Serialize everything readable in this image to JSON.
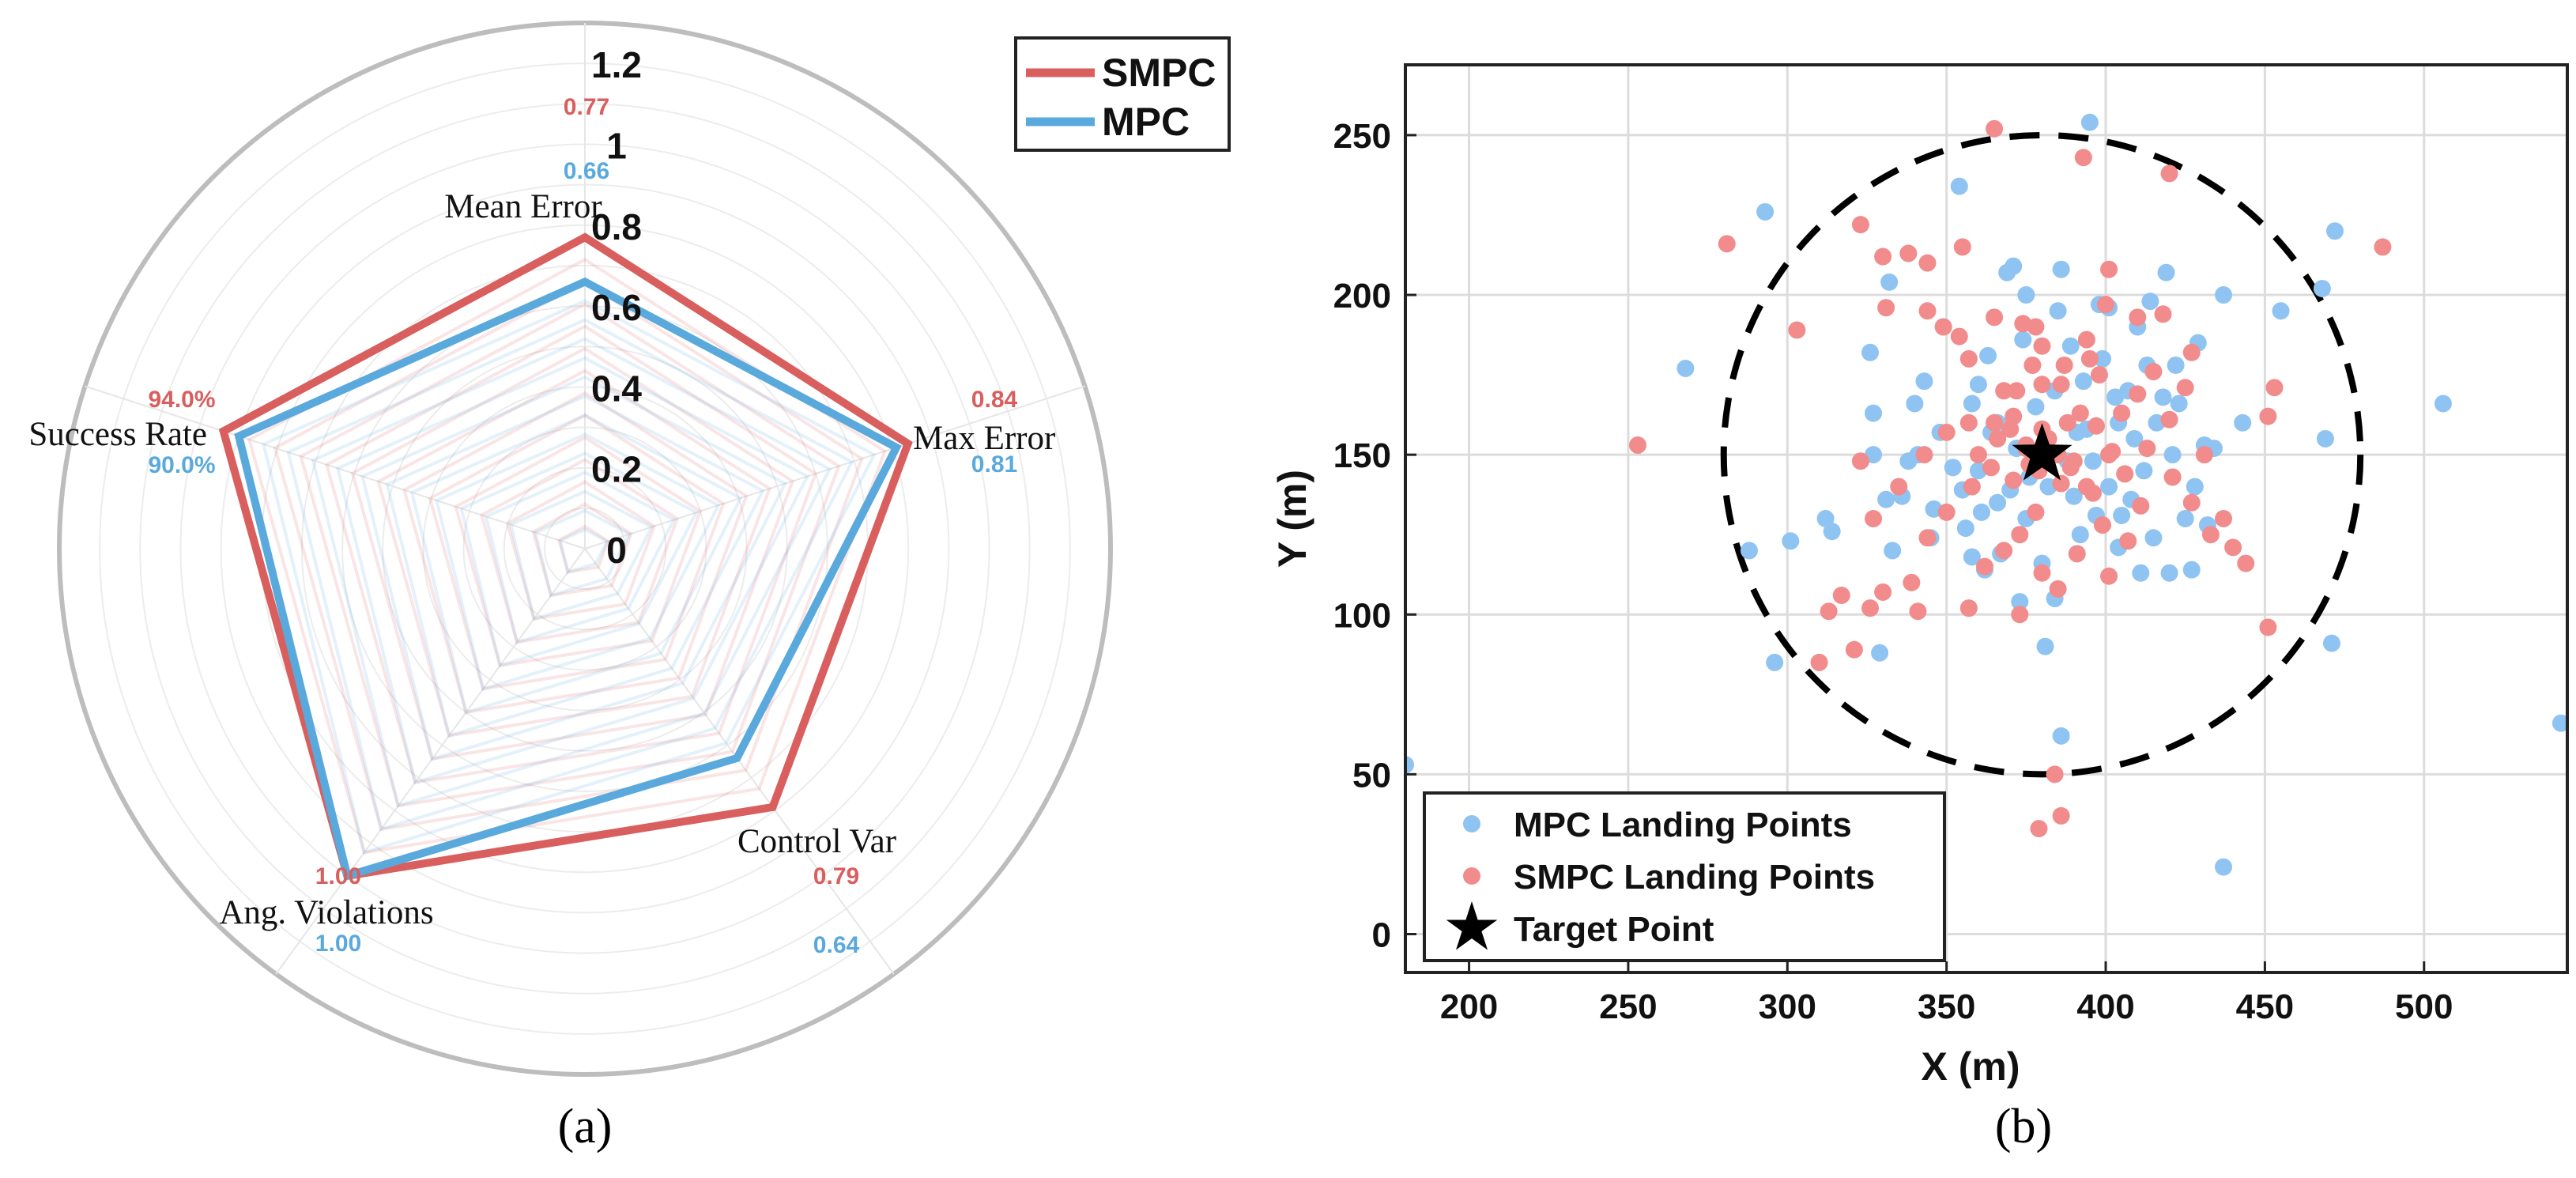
{
  "chart_data": [
    {
      "panel": "(a)",
      "type": "radar",
      "axes": [
        "Mean Error",
        "Max Error",
        "Control Var",
        "Ang. Violations",
        "Success Rate"
      ],
      "r_ticks": [
        "0",
        "0.2",
        "0.4",
        "0.6",
        "0.8",
        "1",
        "1.2"
      ],
      "rlim": [
        0,
        1.3
      ],
      "series": [
        {
          "name": "SMPC",
          "color": "#d95f5f",
          "values": [
            0.77,
            0.84,
            0.79,
            1.0,
            0.94
          ],
          "labels": [
            "0.77",
            "0.84",
            "0.79",
            "1.00",
            "94.0%"
          ]
        },
        {
          "name": "MPC",
          "color": "#5aa9dd",
          "values": [
            0.66,
            0.81,
            0.64,
            1.0,
            0.9
          ],
          "labels": [
            "0.66",
            "0.81",
            "0.64",
            "1.00",
            "90.0%"
          ]
        }
      ],
      "legend": [
        "SMPC",
        "MPC"
      ],
      "legend_position": "top-right"
    },
    {
      "panel": "(b)",
      "type": "scatter",
      "xlabel": "X (m)",
      "ylabel": "Y (m)",
      "xlim": [
        180,
        545
      ],
      "ylim": [
        -12,
        272
      ],
      "x_ticks": [
        "200",
        "250",
        "300",
        "350",
        "400",
        "450",
        "500"
      ],
      "y_ticks": [
        "0",
        "50",
        "100",
        "150",
        "200",
        "250"
      ],
      "grid": true,
      "circle": {
        "center": [
          380,
          150
        ],
        "radius": 100,
        "style": "dashed"
      },
      "target": {
        "name": "Target Point",
        "x": 380,
        "y": 150
      },
      "legend_position": "bottom-left",
      "series": [
        {
          "name": "MPC Landing Points",
          "color": "#8fc3f2",
          "points": [
            [
              395,
              254
            ],
            [
              293,
              226
            ],
            [
              354,
              234
            ],
            [
              369,
              207
            ],
            [
              371,
              209
            ],
            [
              332,
              204
            ],
            [
              296,
              85
            ],
            [
              288,
              120
            ],
            [
              301,
              123
            ],
            [
              312,
              130
            ],
            [
              314,
              126
            ],
            [
              326,
              182
            ],
            [
              327,
              163
            ],
            [
              340,
              166
            ],
            [
              341,
              150
            ],
            [
              348,
              157
            ],
            [
              358,
              166
            ],
            [
              360,
              172
            ],
            [
              366,
              160
            ],
            [
              370,
              139
            ],
            [
              375,
              130
            ],
            [
              380,
              116
            ],
            [
              384,
              105
            ],
            [
              386,
              62
            ],
            [
              381,
              90
            ],
            [
              392,
              125
            ],
            [
              397,
              131
            ],
            [
              401,
              140
            ],
            [
              404,
              160
            ],
            [
              407,
              170
            ],
            [
              410,
              190
            ],
            [
              414,
              198
            ],
            [
              419,
              207
            ],
            [
              422,
              178
            ],
            [
              429,
              185
            ],
            [
              434,
              152
            ],
            [
              437,
              200
            ],
            [
              443,
              160
            ],
            [
              455,
              195
            ],
            [
              468,
              202
            ],
            [
              472,
              220
            ],
            [
              469,
              155
            ],
            [
              471,
              91
            ],
            [
              506,
              166
            ],
            [
              543,
              66
            ],
            [
              180,
              53
            ],
            [
              437,
              21
            ],
            [
              268,
              177
            ],
            [
              329,
              88
            ],
            [
              333,
              120
            ],
            [
              336,
              137
            ],
            [
              345,
              124
            ],
            [
              352,
              146
            ],
            [
              355,
              139
            ],
            [
              361,
              132
            ],
            [
              364,
              157
            ],
            [
              372,
              152
            ],
            [
              376,
              143
            ],
            [
              378,
              165
            ],
            [
              384,
              170
            ],
            [
              388,
              148
            ],
            [
              390,
              137
            ],
            [
              394,
              158
            ],
            [
              398,
              197
            ],
            [
              401,
              196
            ],
            [
              404,
              121
            ],
            [
              408,
              136
            ],
            [
              412,
              145
            ],
            [
              416,
              160
            ],
            [
              418,
              168
            ],
            [
              420,
              113
            ],
            [
              425,
              130
            ],
            [
              428,
              140
            ],
            [
              431,
              153
            ],
            [
              349,
              190
            ],
            [
              356,
              127
            ],
            [
              362,
              114
            ],
            [
              367,
              119
            ],
            [
              373,
              104
            ],
            [
              386,
              208
            ],
            [
              393,
              173
            ],
            [
              399,
              180
            ],
            [
              403,
              168
            ],
            [
              411,
              113
            ],
            [
              415,
              124
            ],
            [
              423,
              166
            ],
            [
              327,
              150
            ],
            [
              331,
              136
            ],
            [
              338,
              148
            ],
            [
              343,
              173
            ],
            [
              346,
              133
            ],
            [
              358,
              118
            ],
            [
              363,
              181
            ],
            [
              374,
              186
            ],
            [
              389,
              184
            ],
            [
              396,
              148
            ],
            [
              405,
              131
            ],
            [
              409,
              155
            ],
            [
              413,
              178
            ],
            [
              421,
              150
            ],
            [
              427,
              114
            ],
            [
              432,
              128
            ],
            [
              375,
              200
            ],
            [
              385,
              195
            ],
            [
              391,
              157
            ],
            [
              360,
              145
            ],
            [
              366,
              135
            ],
            [
              382,
              140
            ]
          ]
        },
        {
          "name": "SMPC Landing Points",
          "color": "#f28b8b",
          "points": [
            [
              365,
              252
            ],
            [
              393,
              243
            ],
            [
              420,
              238
            ],
            [
              281,
              216
            ],
            [
              323,
              222
            ],
            [
              330,
              212
            ],
            [
              338,
              213
            ],
            [
              344,
              210
            ],
            [
              355,
              215
            ],
            [
              331,
              196
            ],
            [
              344,
              195
            ],
            [
              349,
              190
            ],
            [
              354,
              187
            ],
            [
              303,
              189
            ],
            [
              357,
              180
            ],
            [
              365,
              193
            ],
            [
              374,
              191
            ],
            [
              380,
              184
            ],
            [
              377,
              178
            ],
            [
              387,
              178
            ],
            [
              401,
              208
            ],
            [
              400,
              197
            ],
            [
              410,
              193
            ],
            [
              418,
              194
            ],
            [
              427,
              182
            ],
            [
              394,
              186
            ],
            [
              386,
              172
            ],
            [
              380,
              172
            ],
            [
              372,
              170
            ],
            [
              365,
              160
            ],
            [
              357,
              160
            ],
            [
              350,
              157
            ],
            [
              343,
              150
            ],
            [
              335,
              140
            ],
            [
              327,
              130
            ],
            [
              323,
              148
            ],
            [
              330,
              107
            ],
            [
              326,
              102
            ],
            [
              317,
              106
            ],
            [
              313,
              101
            ],
            [
              310,
              85
            ],
            [
              339,
              110
            ],
            [
              341,
              101
            ],
            [
              344,
              124
            ],
            [
              350,
              132
            ],
            [
              357,
              102
            ],
            [
              362,
              115
            ],
            [
              368,
              120
            ],
            [
              373,
              125
            ],
            [
              378,
              132
            ],
            [
              386,
              141
            ],
            [
              390,
              148
            ],
            [
              394,
              140
            ],
            [
              399,
              128
            ],
            [
              406,
              144
            ],
            [
              413,
              152
            ],
            [
              420,
              161
            ],
            [
              425,
              171
            ],
            [
              431,
              150
            ],
            [
              437,
              130
            ],
            [
              440,
              121
            ],
            [
              444,
              116
            ],
            [
              451,
              96
            ],
            [
              453,
              171
            ],
            [
              451,
              162
            ],
            [
              487,
              215
            ],
            [
              253,
              153
            ],
            [
              321,
              89
            ],
            [
              379,
              33
            ],
            [
              386,
              37
            ],
            [
              384,
              50
            ],
            [
              373,
              100
            ],
            [
              380,
              113
            ],
            [
              385,
              108
            ],
            [
              391,
              119
            ],
            [
              396,
              138
            ],
            [
              401,
              150
            ],
            [
              405,
              163
            ],
            [
              410,
              169
            ],
            [
              415,
              176
            ],
            [
              421,
              143
            ],
            [
              427,
              135
            ],
            [
              433,
              125
            ],
            [
              360,
              150
            ],
            [
              366,
              155
            ],
            [
              370,
              158
            ],
            [
              375,
              152
            ],
            [
              379,
              145
            ],
            [
              382,
              155
            ],
            [
              388,
              160
            ],
            [
              392,
              163
            ],
            [
              397,
              159
            ],
            [
              402,
              151
            ],
            [
              358,
              140
            ],
            [
              364,
              146
            ],
            [
              371,
              142
            ],
            [
              376,
              147
            ],
            [
              383,
              150
            ],
            [
              389,
              146
            ],
            [
              371,
              162
            ],
            [
              368,
              170
            ],
            [
              378,
              190
            ],
            [
              395,
              180
            ],
            [
              411,
              134
            ],
            [
              401,
              112
            ],
            [
              398,
              175
            ],
            [
              407,
              123
            ],
            [
              375,
              153
            ],
            [
              380,
              158
            ],
            [
              385,
              150
            ]
          ]
        },
        {
          "name": "Target Point",
          "marker": "star",
          "color": "#000000",
          "points": [
            [
              380,
              150
            ]
          ]
        }
      ]
    }
  ],
  "captions": {
    "a": "(a)",
    "b": "(b)"
  }
}
